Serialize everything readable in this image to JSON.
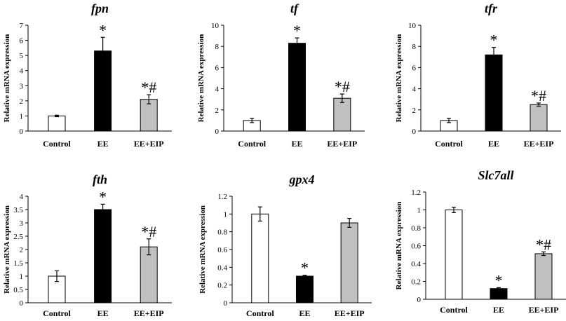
{
  "colors": {
    "Control": "#ffffff",
    "EE": "#000000",
    "EE+EIP": "#c0c0c0",
    "stroke": "#000000"
  },
  "chart_data": [
    {
      "type": "bar",
      "title": "fpn",
      "ylabel": "Relative mRNA expression",
      "categories": [
        "Control",
        "EE",
        "EE+EIP"
      ],
      "values": [
        1.0,
        5.3,
        2.1
      ],
      "errors": [
        0.05,
        0.9,
        0.3
      ],
      "annotations": [
        "",
        "*",
        "*#"
      ],
      "ylim": [
        0,
        7
      ],
      "yticks": [
        0,
        1,
        2,
        3,
        4,
        5,
        6,
        7
      ],
      "ytick_labels": [
        "0",
        "1",
        "2",
        "3",
        "4",
        "5",
        "6",
        "7"
      ],
      "grid": false
    },
    {
      "type": "bar",
      "title": "tf",
      "ylabel": "Relative mRNA expression",
      "categories": [
        "Control",
        "EE",
        "EE+EIP"
      ],
      "values": [
        1.0,
        8.3,
        3.1
      ],
      "errors": [
        0.2,
        0.5,
        0.4
      ],
      "annotations": [
        "",
        "*",
        "*#"
      ],
      "ylim": [
        0,
        10
      ],
      "yticks": [
        0,
        2,
        4,
        6,
        8,
        10
      ],
      "ytick_labels": [
        "0",
        "2",
        "4",
        "6",
        "8",
        "10"
      ],
      "grid": false
    },
    {
      "type": "bar",
      "title": "tfr",
      "ylabel": "Relative mRNA expression",
      "categories": [
        "Control",
        "EE",
        "EE+EIP"
      ],
      "values": [
        1.0,
        7.2,
        2.5
      ],
      "errors": [
        0.2,
        0.7,
        0.15
      ],
      "annotations": [
        "",
        "*",
        "*#"
      ],
      "ylim": [
        0,
        10
      ],
      "yticks": [
        0,
        2,
        4,
        6,
        8,
        10
      ],
      "ytick_labels": [
        "0",
        "2",
        "4",
        "6",
        "8",
        "10"
      ],
      "grid": false
    },
    {
      "type": "bar",
      "title": "fth",
      "ylabel": "Relative mRNA expression",
      "categories": [
        "Control",
        "EE",
        "EE+EIP"
      ],
      "values": [
        1.0,
        3.5,
        2.1
      ],
      "errors": [
        0.2,
        0.2,
        0.3
      ],
      "annotations": [
        "",
        "*",
        "*#"
      ],
      "ylim": [
        0,
        4
      ],
      "yticks": [
        0,
        0.5,
        1,
        1.5,
        2,
        2.5,
        3,
        3.5,
        4
      ],
      "ytick_labels": [
        "0",
        "0.5",
        "1",
        "1.5",
        "2",
        "2.5",
        "3",
        "3.5",
        "4"
      ],
      "grid": false
    },
    {
      "type": "bar",
      "title": "gpx4",
      "ylabel": "Relative mRNA expression",
      "categories": [
        "Control",
        "EE",
        "EE+EIP"
      ],
      "values": [
        1.0,
        0.3,
        0.9
      ],
      "errors": [
        0.08,
        0.01,
        0.05
      ],
      "annotations": [
        "",
        "*",
        ""
      ],
      "ylim": [
        0,
        1.2
      ],
      "yticks": [
        0,
        0.2,
        0.4,
        0.6,
        0.8,
        1,
        1.2
      ],
      "ytick_labels": [
        "0",
        "0.2",
        "0.4",
        "0.6",
        "0.8",
        "1",
        "1.2"
      ],
      "grid": false
    },
    {
      "type": "bar",
      "title": "Slc7all",
      "ylabel": "Relative mRNA expression",
      "categories": [
        "Control",
        "EE",
        "EE+EIP"
      ],
      "values": [
        1.0,
        0.12,
        0.51
      ],
      "errors": [
        0.03,
        0.01,
        0.02
      ],
      "annotations": [
        "",
        "*",
        "*#"
      ],
      "ylim": [
        0,
        1.2
      ],
      "yticks": [
        0,
        0.2,
        0.4,
        0.6,
        0.8,
        1,
        1.2
      ],
      "ytick_labels": [
        "0",
        "0.2",
        "0.4",
        "0.6",
        "0.8",
        "1",
        "1.2"
      ],
      "grid": false
    }
  ]
}
